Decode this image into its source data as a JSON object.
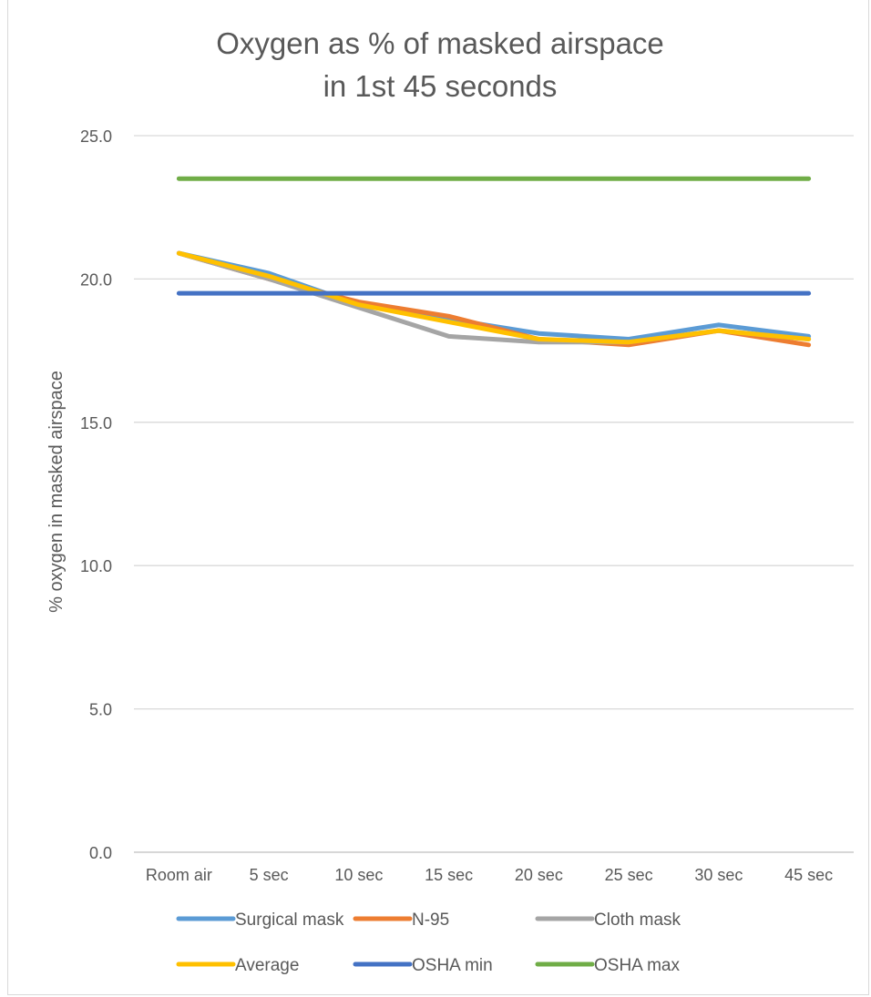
{
  "chart_data": {
    "type": "line",
    "title_lines": [
      "Oxygen as % of masked airspace",
      "in 1st 45 seconds"
    ],
    "xlabel": "",
    "ylabel": "% oxygen in masked airspace",
    "ylim": [
      0,
      25
    ],
    "y_ticks": [
      "0.0",
      "5.0",
      "10.0",
      "15.0",
      "20.0",
      "25.0"
    ],
    "y_tick_values": [
      0,
      5,
      10,
      15,
      20,
      25
    ],
    "grid": true,
    "legend_position": "bottom",
    "categories": [
      "Room air",
      "5 sec",
      "10 sec",
      "15 sec",
      "20 sec",
      "25 sec",
      "30 sec",
      "45 sec"
    ],
    "series": [
      {
        "name": "Surgical mask",
        "color": "#5b9bd5",
        "values": [
          20.9,
          20.2,
          19.1,
          18.6,
          18.1,
          17.9,
          18.4,
          18.0
        ]
      },
      {
        "name": "N-95",
        "color": "#ed7d31",
        "values": [
          20.9,
          20.0,
          19.2,
          18.7,
          17.9,
          17.7,
          18.2,
          17.7
        ]
      },
      {
        "name": "Cloth mask",
        "color": "#a5a5a5",
        "values": [
          20.9,
          20.0,
          19.0,
          18.0,
          17.8,
          17.8,
          18.2,
          17.9
        ]
      },
      {
        "name": "Average",
        "color": "#ffc000",
        "values": [
          20.9,
          20.1,
          19.1,
          18.5,
          17.9,
          17.8,
          18.2,
          17.9
        ]
      },
      {
        "name": "OSHA min",
        "color": "#4472c4",
        "values": [
          19.5,
          19.5,
          19.5,
          19.5,
          19.5,
          19.5,
          19.5,
          19.5
        ]
      },
      {
        "name": "OSHA max",
        "color": "#70ad47",
        "values": [
          23.5,
          23.5,
          23.5,
          23.5,
          23.5,
          23.5,
          23.5,
          23.5
        ]
      }
    ]
  }
}
